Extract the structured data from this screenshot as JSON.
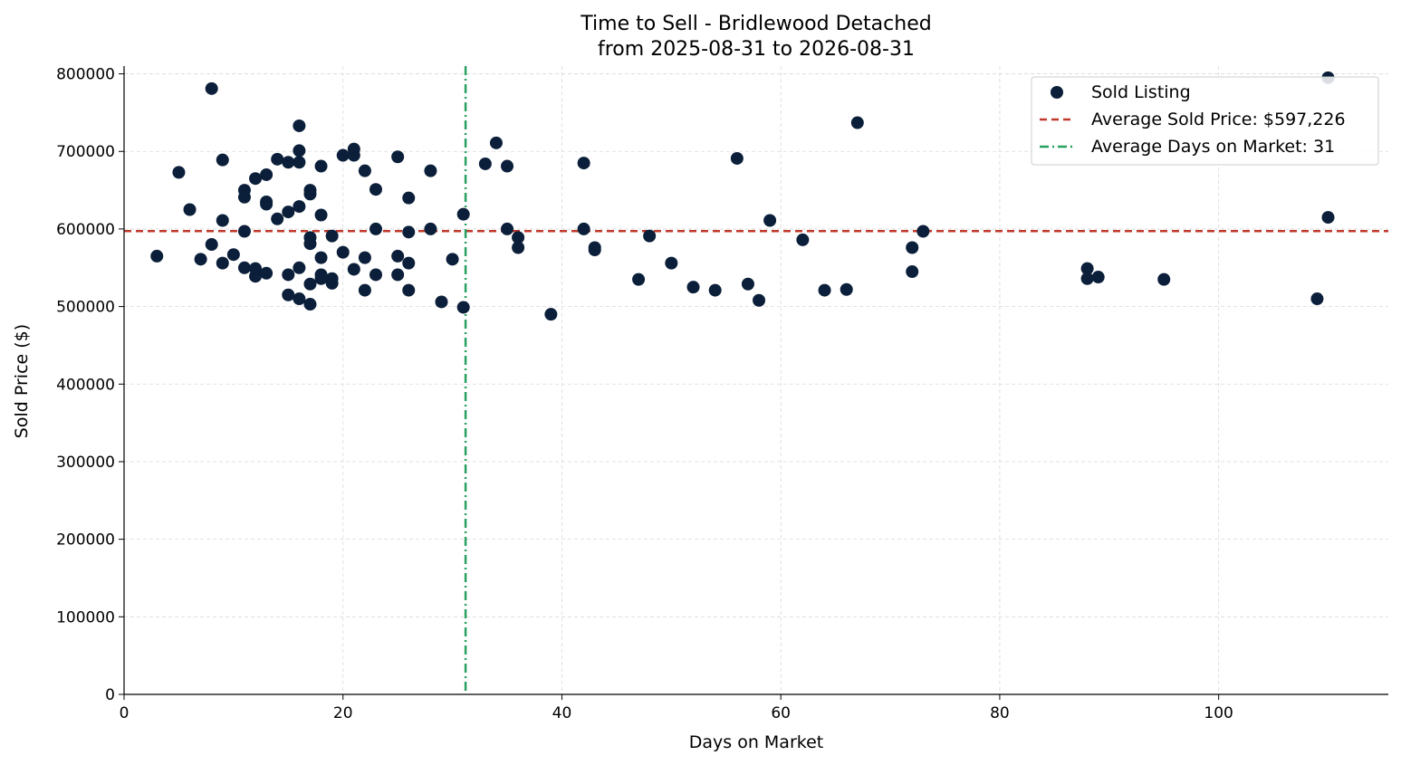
{
  "chart_data": {
    "type": "scatter",
    "title": "Time to Sell - Bridlewood Detached",
    "subtitle": "from 2025-08-31 to 2026-08-31",
    "xlabel": "Days on Market",
    "ylabel": "Sold Price ($)",
    "xlim": [
      0,
      115.5
    ],
    "ylim": [
      0,
      810000
    ],
    "xticks": [
      0,
      20,
      40,
      60,
      80,
      100
    ],
    "yticks": [
      0,
      100000,
      200000,
      300000,
      400000,
      500000,
      600000,
      700000,
      800000
    ],
    "grid": true,
    "legend_position": "top-right",
    "colors": {
      "points": "#0b1f3a",
      "avg_price": "#c0392b",
      "avg_days": "#27a060",
      "grid": "#d9d9d9"
    },
    "series": [
      {
        "name": "Sold Listing",
        "points": [
          [
            3,
            565000
          ],
          [
            5,
            673000
          ],
          [
            6,
            625000
          ],
          [
            7,
            561000
          ],
          [
            8,
            781000
          ],
          [
            8,
            580000
          ],
          [
            9,
            689000
          ],
          [
            9,
            611000
          ],
          [
            9,
            556000
          ],
          [
            10,
            567000
          ],
          [
            11,
            650000
          ],
          [
            11,
            641000
          ],
          [
            11,
            597000
          ],
          [
            11,
            550000
          ],
          [
            12,
            665000
          ],
          [
            12,
            549000
          ],
          [
            12,
            539000
          ],
          [
            13,
            670000
          ],
          [
            13,
            635000
          ],
          [
            13,
            632000
          ],
          [
            13,
            543000
          ],
          [
            14,
            690000
          ],
          [
            14,
            613000
          ],
          [
            15,
            686000
          ],
          [
            15,
            622000
          ],
          [
            15,
            541000
          ],
          [
            15,
            515000
          ],
          [
            16,
            733000
          ],
          [
            16,
            701000
          ],
          [
            16,
            686000
          ],
          [
            16,
            629000
          ],
          [
            16,
            550000
          ],
          [
            16,
            510000
          ],
          [
            17,
            650000
          ],
          [
            17,
            645000
          ],
          [
            17,
            589000
          ],
          [
            17,
            581000
          ],
          [
            17,
            529000
          ],
          [
            17,
            503000
          ],
          [
            18,
            681000
          ],
          [
            18,
            618000
          ],
          [
            18,
            563000
          ],
          [
            18,
            541000
          ],
          [
            18,
            536000
          ],
          [
            19,
            591000
          ],
          [
            19,
            536000
          ],
          [
            19,
            530000
          ],
          [
            20,
            695000
          ],
          [
            20,
            570000
          ],
          [
            21,
            703000
          ],
          [
            21,
            695000
          ],
          [
            21,
            548000
          ],
          [
            22,
            675000
          ],
          [
            22,
            563000
          ],
          [
            22,
            521000
          ],
          [
            23,
            651000
          ],
          [
            23,
            600000
          ],
          [
            23,
            541000
          ],
          [
            25,
            693000
          ],
          [
            25,
            565000
          ],
          [
            25,
            541000
          ],
          [
            26,
            640000
          ],
          [
            26,
            596000
          ],
          [
            26,
            556000
          ],
          [
            26,
            521000
          ],
          [
            28,
            675000
          ],
          [
            28,
            600000
          ],
          [
            29,
            506000
          ],
          [
            30,
            561000
          ],
          [
            31,
            619000
          ],
          [
            31,
            499000
          ],
          [
            33,
            684000
          ],
          [
            34,
            711000
          ],
          [
            35,
            681000
          ],
          [
            35,
            600000
          ],
          [
            36,
            589000
          ],
          [
            36,
            576000
          ],
          [
            39,
            490000
          ],
          [
            42,
            685000
          ],
          [
            42,
            600000
          ],
          [
            43,
            576000
          ],
          [
            43,
            573000
          ],
          [
            47,
            535000
          ],
          [
            48,
            591000
          ],
          [
            50,
            556000
          ],
          [
            52,
            525000
          ],
          [
            54,
            521000
          ],
          [
            56,
            691000
          ],
          [
            57,
            529000
          ],
          [
            58,
            508000
          ],
          [
            59,
            611000
          ],
          [
            62,
            586000
          ],
          [
            64,
            521000
          ],
          [
            66,
            522000
          ],
          [
            67,
            737000
          ],
          [
            72,
            576000
          ],
          [
            72,
            545000
          ],
          [
            73,
            597000
          ],
          [
            88,
            549000
          ],
          [
            88,
            536000
          ],
          [
            89,
            538000
          ],
          [
            95,
            535000
          ],
          [
            109,
            510000
          ],
          [
            110,
            795000
          ],
          [
            110,
            615000
          ]
        ]
      }
    ],
    "average_price": 597226,
    "average_days": 31.2,
    "legend": {
      "items": [
        "Sold Listing",
        "Average Sold Price: $597,226",
        "Average Days on Market: 31"
      ]
    }
  }
}
